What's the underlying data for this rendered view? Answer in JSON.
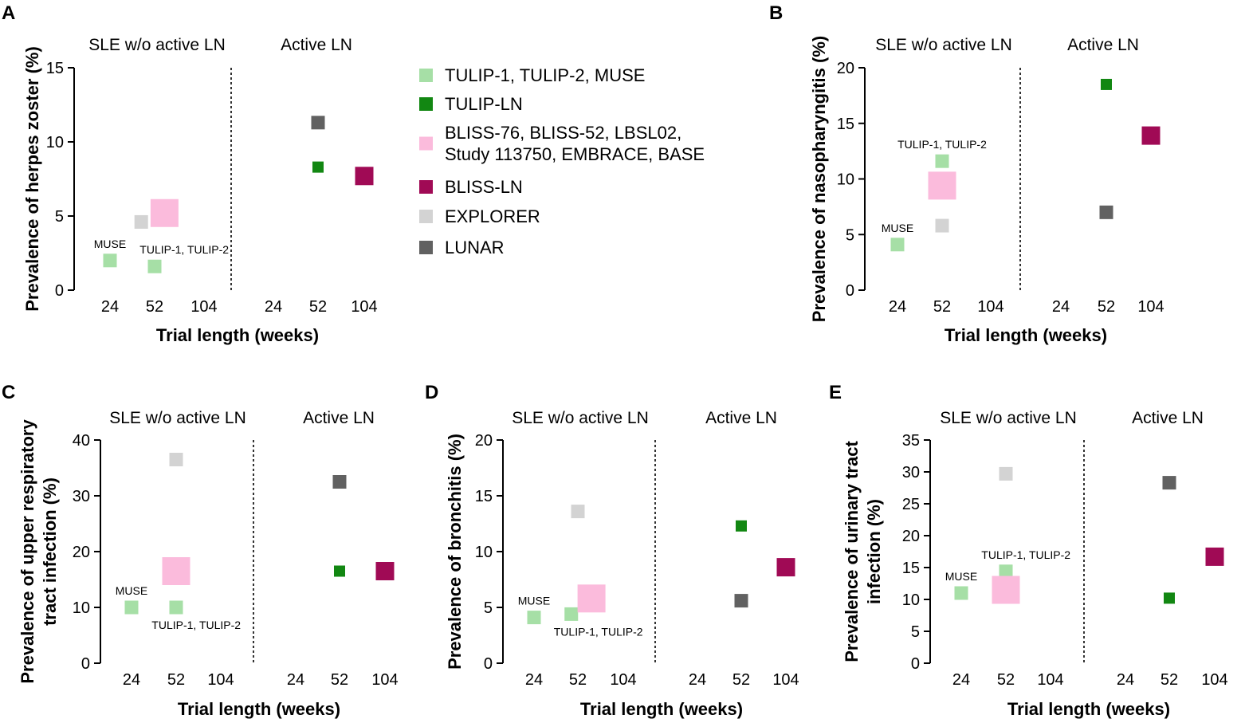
{
  "colors": {
    "tulip12_muse": "#a6dfa6",
    "tulip_ln": "#128712",
    "bliss": "#fbbbdc",
    "bliss_ln": "#a00a55",
    "explorer": "#d3d3d3",
    "lunar": "#616161"
  },
  "legend": [
    {
      "group": "tulip12_muse",
      "label": [
        "TULIP-1, TULIP-2, MUSE"
      ]
    },
    {
      "group": "tulip_ln",
      "label": [
        "TULIP-LN"
      ]
    },
    {
      "group": "bliss",
      "label": [
        "BLISS-76, BLISS-52, LBSL02,",
        "Study 113750, EMBRACE, BASE"
      ]
    },
    {
      "group": "bliss_ln",
      "label": [
        "BLISS-LN"
      ]
    },
    {
      "group": "explorer",
      "label": [
        "EXPLORER"
      ]
    },
    {
      "group": "lunar",
      "label": [
        "LUNAR"
      ]
    }
  ],
  "chart_data": [
    {
      "panel": "A",
      "type": "scatter",
      "section_labels": [
        "SLE w/o active LN",
        "Active LN"
      ],
      "ylabel": [
        "Prevalence of herpes zoster (%)"
      ],
      "xlabel": "Trial length (weeks)",
      "x_categories": [
        "24",
        "52",
        "104"
      ],
      "ylim": [
        0,
        15
      ],
      "yticks": [
        0,
        5,
        10,
        15
      ],
      "points": [
        {
          "section": 0,
          "x": 0,
          "y": 2.0,
          "group": "tulip12_muse",
          "size": "medium"
        },
        {
          "section": 0,
          "x": 1,
          "y": 1.6,
          "group": "tulip12_muse",
          "size": "medium"
        },
        {
          "section": 0,
          "x": 0.7,
          "y": 4.6,
          "group": "explorer",
          "size": "medium"
        },
        {
          "section": 0,
          "x": 1.2,
          "y": 5.2,
          "group": "bliss",
          "size": "large"
        },
        {
          "section": 1,
          "x": 1,
          "y": 11.3,
          "group": "lunar",
          "size": "medium"
        },
        {
          "section": 1,
          "x": 1,
          "y": 8.3,
          "group": "tulip_ln",
          "size": "small"
        },
        {
          "section": 1,
          "x": 2,
          "y": 7.7,
          "group": "bliss_ln",
          "size": "medium-large"
        }
      ],
      "annotations": [
        {
          "text": "MUSE",
          "section": 0,
          "x": 0,
          "y": 2.0,
          "pos": "above"
        },
        {
          "text": "TULIP-1, TULIP-2",
          "section": 0,
          "x": 1.6,
          "y": 1.6,
          "pos": "above"
        }
      ]
    },
    {
      "panel": "B",
      "type": "scatter",
      "section_labels": [
        "SLE w/o active LN",
        "Active LN"
      ],
      "ylabel": [
        "Prevalence of nasopharyngitis (%)"
      ],
      "xlabel": "Trial length (weeks)",
      "x_categories": [
        "24",
        "52",
        "104"
      ],
      "ylim": [
        0,
        20
      ],
      "yticks": [
        0,
        5,
        10,
        15,
        20
      ],
      "points": [
        {
          "section": 0,
          "x": 0,
          "y": 4.1,
          "group": "tulip12_muse",
          "size": "medium"
        },
        {
          "section": 0,
          "x": 1,
          "y": 11.6,
          "group": "tulip12_muse",
          "size": "medium"
        },
        {
          "section": 0,
          "x": 1,
          "y": 5.8,
          "group": "explorer",
          "size": "medium"
        },
        {
          "section": 0,
          "x": 1,
          "y": 9.4,
          "group": "bliss",
          "size": "large"
        },
        {
          "section": 1,
          "x": 1,
          "y": 18.5,
          "group": "tulip_ln",
          "size": "small"
        },
        {
          "section": 1,
          "x": 1,
          "y": 7.0,
          "group": "lunar",
          "size": "medium"
        },
        {
          "section": 1,
          "x": 2,
          "y": 13.9,
          "group": "bliss_ln",
          "size": "medium-large"
        }
      ],
      "annotations": [
        {
          "text": "MUSE",
          "section": 0,
          "x": 0,
          "y": 4.1,
          "pos": "above"
        },
        {
          "text": "TULIP-1, TULIP-2",
          "section": 0,
          "x": 1,
          "y": 11.6,
          "pos": "above"
        }
      ]
    },
    {
      "panel": "C",
      "type": "scatter",
      "section_labels": [
        "SLE w/o active LN",
        "Active LN"
      ],
      "ylabel": [
        "Prevalence of upper respiratory",
        "tract infection (%)"
      ],
      "xlabel": "Trial length (weeks)",
      "x_categories": [
        "24",
        "52",
        "104"
      ],
      "ylim": [
        0,
        40
      ],
      "yticks": [
        0,
        10,
        20,
        30,
        40
      ],
      "points": [
        {
          "section": 0,
          "x": 0,
          "y": 10.0,
          "group": "tulip12_muse",
          "size": "medium"
        },
        {
          "section": 0,
          "x": 1,
          "y": 10.0,
          "group": "tulip12_muse",
          "size": "medium"
        },
        {
          "section": 0,
          "x": 1,
          "y": 36.5,
          "group": "explorer",
          "size": "medium"
        },
        {
          "section": 0,
          "x": 1,
          "y": 16.5,
          "group": "bliss",
          "size": "large"
        },
        {
          "section": 1,
          "x": 1,
          "y": 32.5,
          "group": "lunar",
          "size": "medium"
        },
        {
          "section": 1,
          "x": 1,
          "y": 16.5,
          "group": "tulip_ln",
          "size": "small"
        },
        {
          "section": 1,
          "x": 2,
          "y": 16.5,
          "group": "bliss_ln",
          "size": "medium-large"
        }
      ],
      "annotations": [
        {
          "text": "MUSE",
          "section": 0,
          "x": 0,
          "y": 10.0,
          "pos": "above"
        },
        {
          "text": "TULIP-1, TULIP-2",
          "section": 0,
          "x": 1.45,
          "y": 10.0,
          "pos": "below"
        }
      ]
    },
    {
      "panel": "D",
      "type": "scatter",
      "section_labels": [
        "SLE w/o active LN",
        "Active LN"
      ],
      "ylabel": [
        "Prevalence of bronchitis (%)"
      ],
      "xlabel": "Trial length (weeks)",
      "x_categories": [
        "24",
        "52",
        "104"
      ],
      "ylim": [
        0,
        20
      ],
      "yticks": [
        0,
        5,
        10,
        15,
        20
      ],
      "points": [
        {
          "section": 0,
          "x": 0,
          "y": 4.1,
          "group": "tulip12_muse",
          "size": "medium"
        },
        {
          "section": 0,
          "x": 0.85,
          "y": 4.4,
          "group": "tulip12_muse",
          "size": "medium"
        },
        {
          "section": 0,
          "x": 1,
          "y": 13.6,
          "group": "explorer",
          "size": "medium"
        },
        {
          "section": 0,
          "x": 1.3,
          "y": 5.8,
          "group": "bliss",
          "size": "large"
        },
        {
          "section": 1,
          "x": 1,
          "y": 12.3,
          "group": "tulip_ln",
          "size": "small"
        },
        {
          "section": 1,
          "x": 1,
          "y": 5.6,
          "group": "lunar",
          "size": "medium"
        },
        {
          "section": 1,
          "x": 2,
          "y": 8.6,
          "group": "bliss_ln",
          "size": "medium-large"
        }
      ],
      "annotations": [
        {
          "text": "MUSE",
          "section": 0,
          "x": 0,
          "y": 4.1,
          "pos": "above"
        },
        {
          "text": "TULIP-1, TULIP-2",
          "section": 0,
          "x": 1.45,
          "y": 4.4,
          "pos": "below"
        }
      ]
    },
    {
      "panel": "E",
      "type": "scatter",
      "section_labels": [
        "SLE w/o active LN",
        "Active LN"
      ],
      "ylabel": [
        "Prevalence of urinary tract",
        "infection (%)"
      ],
      "xlabel": "Trial length (weeks)",
      "x_categories": [
        "24",
        "52",
        "104"
      ],
      "ylim": [
        0,
        35
      ],
      "yticks": [
        0,
        5,
        10,
        15,
        20,
        25,
        30,
        35
      ],
      "points": [
        {
          "section": 0,
          "x": 0,
          "y": 11.0,
          "group": "tulip12_muse",
          "size": "medium"
        },
        {
          "section": 0,
          "x": 1,
          "y": 14.4,
          "group": "tulip12_muse",
          "size": "medium"
        },
        {
          "section": 0,
          "x": 1,
          "y": 29.7,
          "group": "explorer",
          "size": "medium"
        },
        {
          "section": 0,
          "x": 1,
          "y": 11.5,
          "group": "bliss",
          "size": "large"
        },
        {
          "section": 1,
          "x": 1,
          "y": 28.3,
          "group": "lunar",
          "size": "medium"
        },
        {
          "section": 1,
          "x": 1,
          "y": 10.2,
          "group": "tulip_ln",
          "size": "small"
        },
        {
          "section": 1,
          "x": 2,
          "y": 16.7,
          "group": "bliss_ln",
          "size": "medium-large"
        }
      ],
      "annotations": [
        {
          "text": "MUSE",
          "section": 0,
          "x": 0,
          "y": 11.0,
          "pos": "above"
        },
        {
          "text": "TULIP-1, TULIP-2",
          "section": 0,
          "x": 1.45,
          "y": 14.4,
          "pos": "above"
        }
      ]
    }
  ]
}
